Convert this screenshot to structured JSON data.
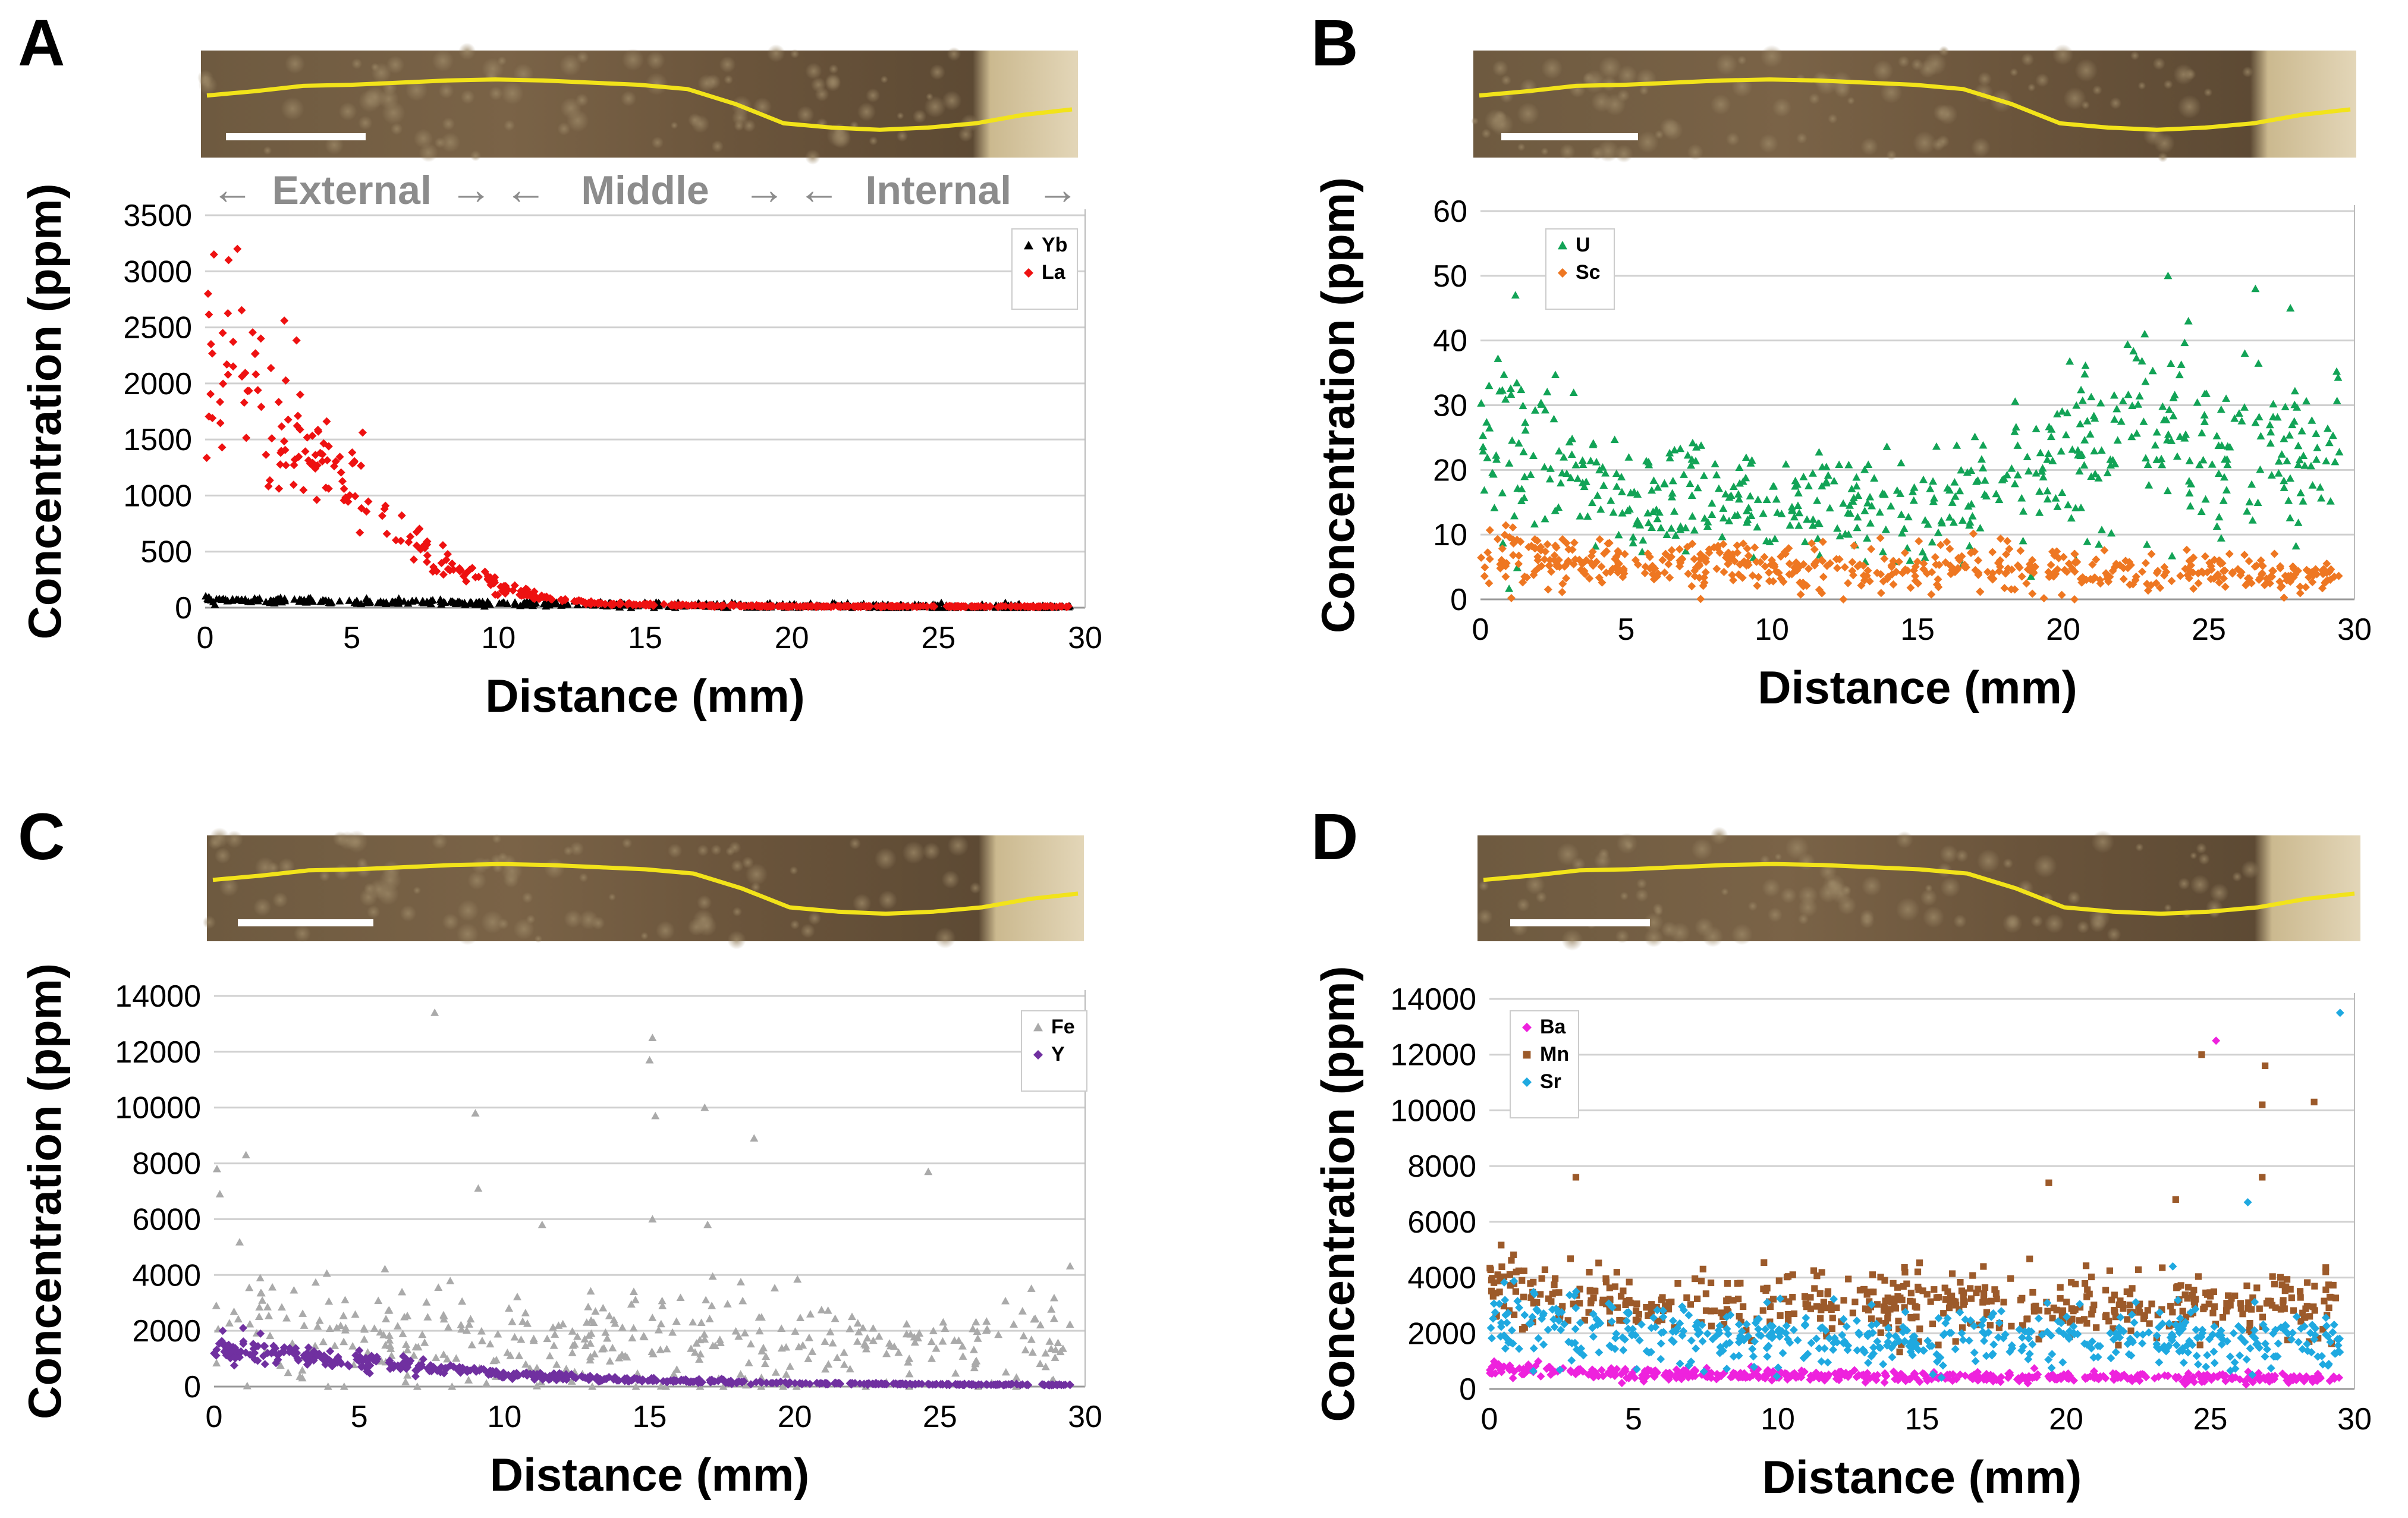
{
  "figure": {
    "panels": [
      {
        "letter": "A",
        "zones": [
          "External",
          "Middle",
          "Internal"
        ],
        "chart_data": {
          "type": "scatter",
          "xlabel": "Distance (mm)",
          "ylabel": "Concentration (ppm)",
          "xlim": [
            0,
            30
          ],
          "ylim": [
            0,
            3500
          ],
          "xticks": [
            "0",
            "5",
            "10",
            "15",
            "20",
            "25",
            "30"
          ],
          "yticks": [
            "0",
            "500",
            "1000",
            "1500",
            "2000",
            "2500",
            "3000",
            "3500"
          ],
          "grid": true,
          "legend_position": "top-right",
          "series": [
            {
              "name": "Yb",
              "color": "#000000",
              "marker": "triangle",
              "trend": [
                [
                  0,
                  70
                ],
                [
                  5,
                  55
                ],
                [
                  10,
                  40
                ],
                [
                  15,
                  25
                ],
                [
                  20,
                  15
                ],
                [
                  25,
                  10
                ],
                [
                  29.5,
                  8
                ]
              ],
              "noise": 12,
              "n": 400
            },
            {
              "name": "La",
              "color": "#ee1111",
              "marker": "diamond",
              "trend": [
                [
                  0,
                  2100
                ],
                [
                  1,
                  2050
                ],
                [
                  2,
                  1800
                ],
                [
                  3,
                  1500
                ],
                [
                  4,
                  1300
                ],
                [
                  5,
                  1050
                ],
                [
                  6,
                  800
                ],
                [
                  7,
                  580
                ],
                [
                  8,
                  420
                ],
                [
                  9,
                  280
                ],
                [
                  10,
                  180
                ],
                [
                  11,
                  110
                ],
                [
                  12,
                  70
                ],
                [
                  13,
                  45
                ],
                [
                  15,
                  25
                ],
                [
                  20,
                  12
                ],
                [
                  29.5,
                  10
                ]
              ],
              "noise": 0.2,
              "n": 520,
              "extra": [
                [
                  0.3,
                  3150
                ],
                [
                  0.8,
                  3100
                ],
                [
                  1.1,
                  3200
                ],
                [
                  0.1,
                  2800
                ],
                [
                  2.7,
                  2560
                ],
                [
                  0.6,
                  2450
                ],
                [
                  1.9,
                  2400
                ],
                [
                  0.2,
                  2350
                ]
              ]
            }
          ]
        }
      },
      {
        "letter": "B",
        "zones": [],
        "chart_data": {
          "type": "scatter",
          "xlabel": "Distance (mm)",
          "ylabel": "Concentration (ppm)",
          "xlim": [
            0,
            30
          ],
          "ylim": [
            0,
            60
          ],
          "xticks": [
            "0",
            "5",
            "10",
            "15",
            "20",
            "25",
            "30"
          ],
          "yticks": [
            "0",
            "10",
            "20",
            "30",
            "40",
            "50",
            "60"
          ],
          "grid": true,
          "legend_position": "top-left",
          "series": [
            {
              "name": "U",
              "color": "#12a356",
              "marker": "triangle",
              "trend": [
                [
                  0,
                  26
                ],
                [
                  2,
                  22
                ],
                [
                  5,
                  17
                ],
                [
                  8,
                  15
                ],
                [
                  12,
                  14
                ],
                [
                  16,
                  15
                ],
                [
                  18,
                  18
                ],
                [
                  20,
                  22
                ],
                [
                  22,
                  26
                ],
                [
                  24,
                  25
                ],
                [
                  26,
                  22
                ],
                [
                  28,
                  22
                ],
                [
                  29.5,
                  22
                ]
              ],
              "noise": 0.28,
              "n": 560,
              "extra": [
                [
                  1.2,
                  47
                ],
                [
                  23.6,
                  50
                ],
                [
                  26.6,
                  48
                ],
                [
                  27.8,
                  45
                ],
                [
                  24.3,
                  43
                ],
                [
                  22.8,
                  41
                ]
              ]
            },
            {
              "name": "Sc",
              "color": "#ee7722",
              "marker": "diamond",
              "trend": [
                [
                  0,
                  7
                ],
                [
                  5,
                  5
                ],
                [
                  10,
                  5
                ],
                [
                  15,
                  4.5
                ],
                [
                  20,
                  4.5
                ],
                [
                  25,
                  4
                ],
                [
                  29.5,
                  3
                ]
              ],
              "noise": 0.4,
              "n": 560
            }
          ]
        }
      },
      {
        "letter": "C",
        "zones": [],
        "chart_data": {
          "type": "scatter",
          "xlabel": "Distance (mm)",
          "ylabel": "Concentration (ppm)",
          "xlim": [
            0,
            30
          ],
          "ylim": [
            0,
            14000
          ],
          "xticks": [
            "0",
            "5",
            "10",
            "15",
            "20",
            "25",
            "30"
          ],
          "yticks": [
            "0",
            "2000",
            "4000",
            "6000",
            "8000",
            "10000",
            "12000",
            "14000"
          ],
          "grid": true,
          "legend_position": "top-right",
          "series": [
            {
              "name": "Fe",
              "color": "#aaaaaa",
              "marker": "triangle",
              "trend": [
                [
                  0,
                  3000
                ],
                [
                  2,
                  2200
                ],
                [
                  5,
                  1700
                ],
                [
                  10,
                  1600
                ],
                [
                  15,
                  1700
                ],
                [
                  20,
                  1500
                ],
                [
                  25,
                  1700
                ],
                [
                  29.5,
                  2000
                ]
              ],
              "noise": 0.55,
              "n": 380,
              "extra": [
                [
                  7.6,
                  13400
                ],
                [
                  15.1,
                  12500
                ],
                [
                  15.0,
                  11700
                ],
                [
                  9.0,
                  9800
                ],
                [
                  16.9,
                  10000
                ],
                [
                  15.2,
                  9700
                ],
                [
                  18.6,
                  8900
                ],
                [
                  24.6,
                  7700
                ],
                [
                  1.1,
                  8300
                ],
                [
                  0.1,
                  7800
                ],
                [
                  9.1,
                  7100
                ],
                [
                  0.2,
                  6900
                ],
                [
                  15.1,
                  6000
                ],
                [
                  17.0,
                  5800
                ],
                [
                  11.3,
                  5800
                ]
              ]
            },
            {
              "name": "Y",
              "color": "#7030a0",
              "marker": "diamond",
              "trend": [
                [
                  0,
                  1300
                ],
                [
                  2,
                  1150
                ],
                [
                  5,
                  900
                ],
                [
                  8,
                  650
                ],
                [
                  10,
                  450
                ],
                [
                  12,
                  330
                ],
                [
                  15,
                  220
                ],
                [
                  20,
                  120
                ],
                [
                  25,
                  80
                ],
                [
                  29.5,
                  60
                ]
              ],
              "noise": 0.18,
              "n": 520,
              "extra": [
                [
                  1.0,
                  2100
                ],
                [
                  0.3,
                  2000
                ],
                [
                  1.6,
                  1900
                ]
              ]
            }
          ]
        }
      },
      {
        "letter": "D",
        "zones": [],
        "chart_data": {
          "type": "scatter",
          "xlabel": "Distance (mm)",
          "ylabel": "Concentration (ppm)",
          "xlim": [
            0,
            30
          ],
          "ylim": [
            0,
            14000
          ],
          "xticks": [
            "0",
            "5",
            "10",
            "15",
            "20",
            "25",
            "30"
          ],
          "yticks": [
            "0",
            "2000",
            "4000",
            "6000",
            "8000",
            "10000",
            "12000",
            "14000"
          ],
          "grid": true,
          "legend_position": "top-left",
          "series": [
            {
              "name": "Ba",
              "color": "#ee22dd",
              "marker": "diamond",
              "trend": [
                [
                  0,
                  750
                ],
                [
                  5,
                  550
                ],
                [
                  10,
                  470
                ],
                [
                  15,
                  430
                ],
                [
                  20,
                  420
                ],
                [
                  25,
                  420
                ],
                [
                  29.5,
                  400
                ]
              ],
              "noise": 0.2,
              "n": 520,
              "extra": [
                [
                  25.2,
                  12500
                ]
              ]
            },
            {
              "name": "Mn",
              "color": "#9c5a2a",
              "marker": "square",
              "trend": [
                [
                  0,
                  3800
                ],
                [
                  3,
                  3300
                ],
                [
                  8,
                  3000
                ],
                [
                  15,
                  3000
                ],
                [
                  20,
                  2900
                ],
                [
                  25,
                  3000
                ],
                [
                  29.5,
                  3000
                ]
              ],
              "noise": 0.2,
              "n": 520,
              "extra": [
                [
                  24.7,
                  12000
                ],
                [
                  26.9,
                  11600
                ],
                [
                  26.8,
                  10200
                ],
                [
                  28.6,
                  10300
                ],
                [
                  3.0,
                  7600
                ],
                [
                  19.4,
                  7400
                ],
                [
                  26.8,
                  7600
                ],
                [
                  23.8,
                  6800
                ]
              ]
            },
            {
              "name": "Sr",
              "color": "#1fa9e0",
              "marker": "diamond",
              "trend": [
                [
                  0,
                  2400
                ],
                [
                  5,
                  2000
                ],
                [
                  10,
                  1900
                ],
                [
                  15,
                  1800
                ],
                [
                  20,
                  1800
                ],
                [
                  25,
                  1800
                ],
                [
                  29.5,
                  1700
                ]
              ],
              "noise": 0.28,
              "n": 520,
              "extra": [
                [
                  29.5,
                  13500
                ],
                [
                  26.3,
                  6700
                ],
                [
                  23.7,
                  4400
                ]
              ]
            }
          ]
        }
      }
    ]
  }
}
